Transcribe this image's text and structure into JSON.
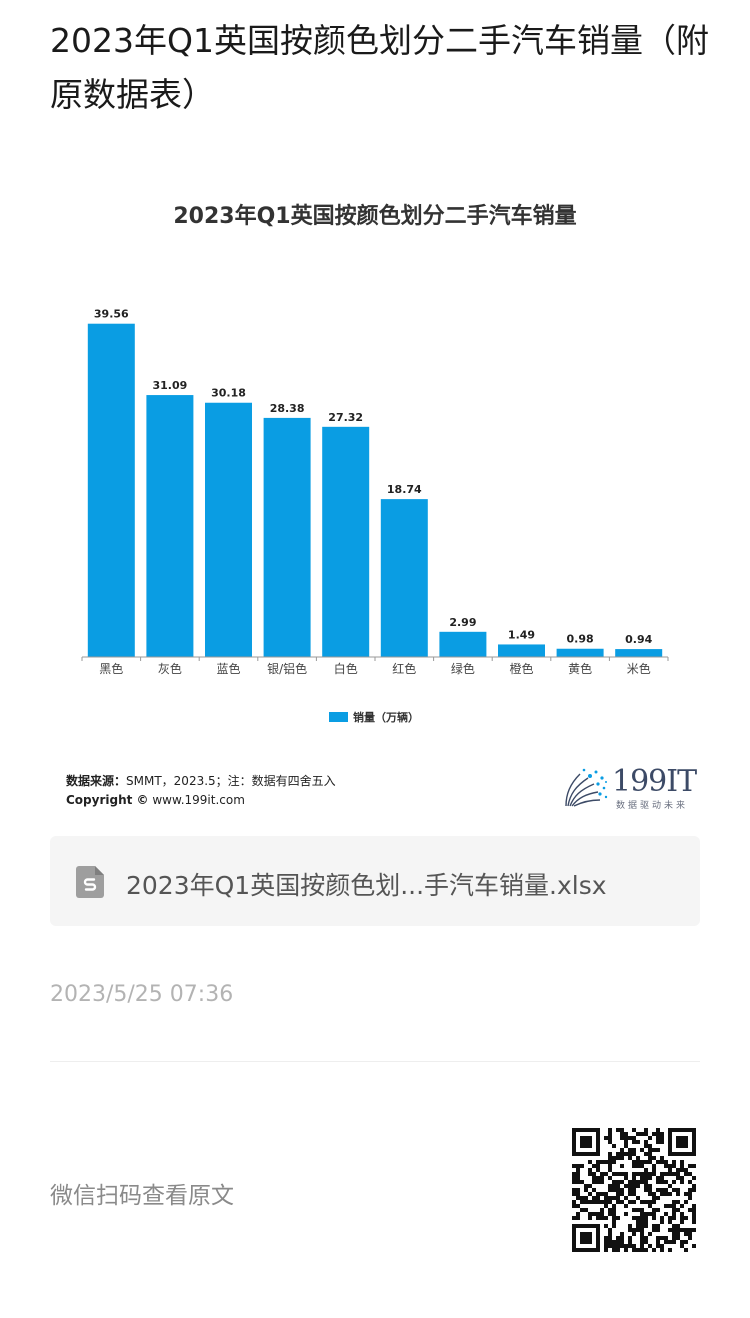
{
  "article": {
    "title": "2023年Q1英国按颜色划分二手汽车销量（附原数据表）"
  },
  "chart_data": {
    "type": "bar",
    "title": "2023年Q1英国按颜色划分二手汽车销量",
    "categories": [
      "黑色",
      "灰色",
      "蓝色",
      "银/铝色",
      "白色",
      "红色",
      "绿色",
      "橙色",
      "黄色",
      "米色"
    ],
    "series": [
      {
        "name": "销量（万辆）",
        "values": [
          39.56,
          31.09,
          30.18,
          28.38,
          27.32,
          18.74,
          2.99,
          1.49,
          0.98,
          0.94
        ]
      }
    ],
    "value_labels": [
      "39.56",
      "31.09",
      "30.18",
      "28.38",
      "27.32",
      "18.74",
      "2.99",
      "1.49",
      "0.98",
      "0.94"
    ],
    "ylim": [
      0,
      40
    ],
    "grid": false,
    "legend_position": "bottom",
    "bar_color": "#0a9de3"
  },
  "chart_footer": {
    "source_label": "数据来源：",
    "source_text": "SMMT，2023.5；注：数据有四舍五入",
    "copyright_label": "Copyright ©",
    "copyright_text": " www.199it.com",
    "brand_name": "199IT",
    "brand_slogan": "数据驱动未来"
  },
  "attachment": {
    "icon": "spreadsheet-file-icon",
    "file_name": "2023年Q1英国按颜色划...手汽车销量.xlsx"
  },
  "timestamp": "2023/5/25 07:36",
  "qr_section": {
    "hint": "微信扫码查看原文",
    "icon": "qr-code-icon"
  }
}
